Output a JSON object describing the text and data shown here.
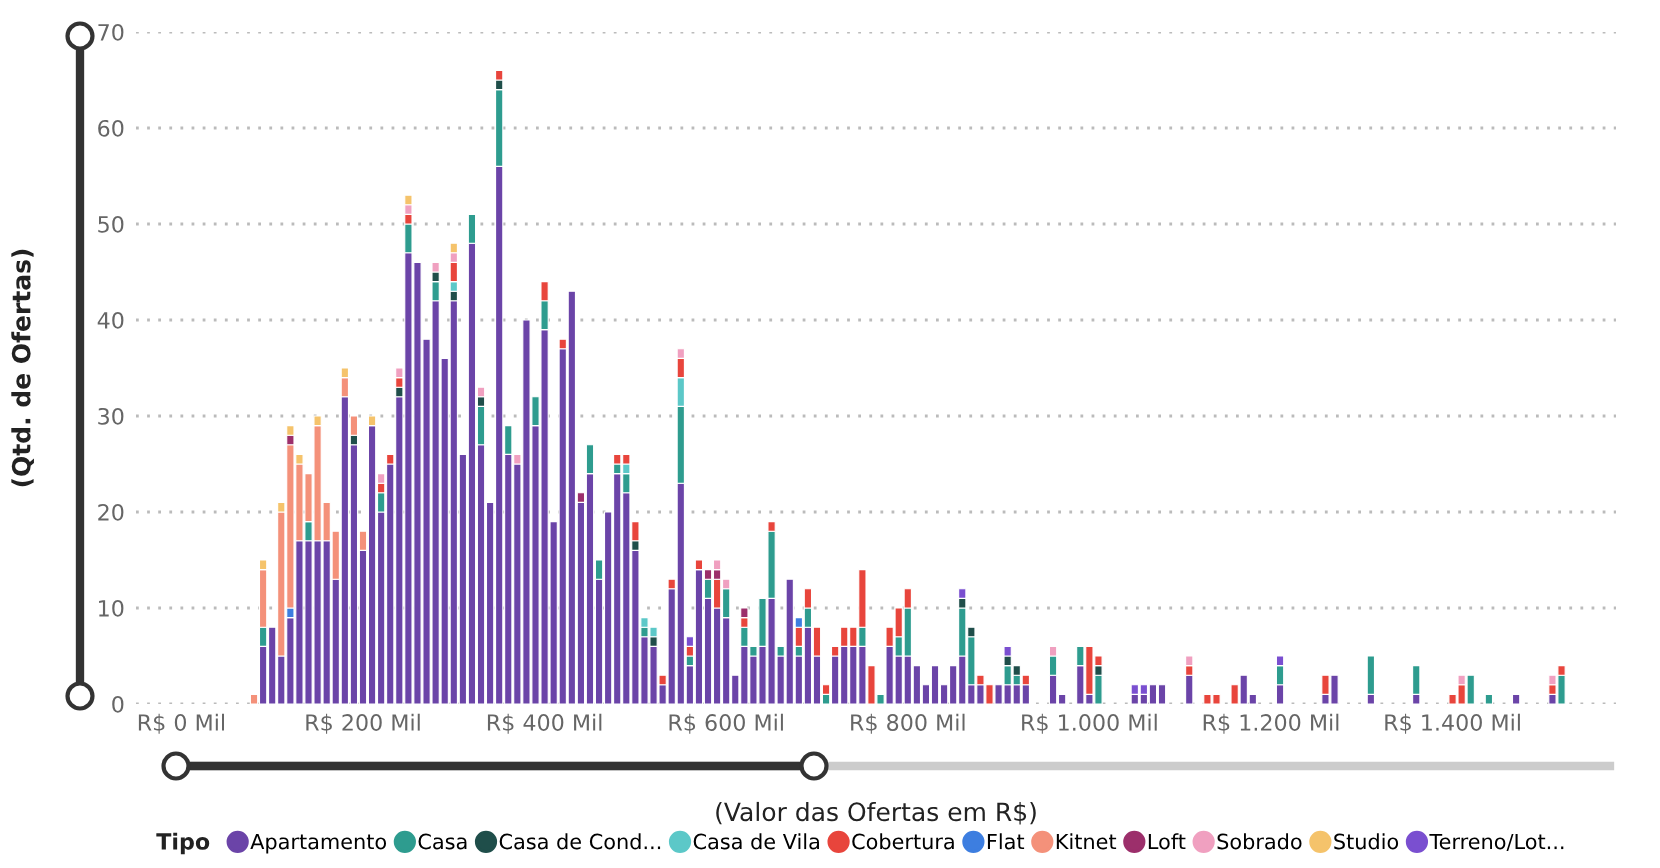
{
  "chart_data": {
    "type": "bar",
    "stacked": true,
    "xlabel": "(Valor das Ofertas em R$)",
    "ylabel": "(Qtd. de Ofertas)",
    "legend_title": "Tipo",
    "legend": "bottom",
    "grid": "y",
    "categories": [
      "R$ 0 Mil",
      null,
      null,
      null,
      null,
      null,
      null,
      null,
      null,
      null,
      null,
      null,
      null,
      null,
      null,
      null,
      null,
      null,
      null,
      null,
      "R$ 200 Mil",
      null,
      null,
      null,
      null,
      null,
      null,
      null,
      null,
      null,
      null,
      null,
      null,
      null,
      null,
      null,
      null,
      null,
      null,
      null,
      "R$ 400 Mil",
      null,
      null,
      null,
      null,
      null,
      null,
      null,
      null,
      null,
      null,
      null,
      null,
      null,
      null,
      null,
      null,
      null,
      null,
      null,
      "R$ 600 Mil",
      null,
      null,
      null,
      null,
      null,
      null,
      null,
      null,
      null,
      null,
      null,
      null,
      null,
      null,
      null,
      null,
      null,
      null,
      null,
      "R$ 800 Mil",
      null,
      null,
      null,
      null,
      null,
      null,
      null,
      null,
      null,
      null,
      null,
      null,
      null,
      null,
      null,
      null,
      null,
      null,
      null,
      "R$ 1.000 Mil",
      null,
      null,
      null,
      null,
      null,
      null,
      null,
      null,
      null,
      null,
      null,
      null,
      null,
      null,
      null,
      null,
      null,
      null,
      null,
      "R$ 1.200 Mil",
      null,
      null,
      null,
      null,
      null,
      null,
      null,
      null,
      null,
      null,
      null,
      null,
      null,
      null,
      null,
      null,
      null,
      null,
      null,
      "R$ 1.400 Mil",
      null,
      null,
      null,
      null,
      null,
      null,
      null,
      null,
      null,
      null,
      null,
      null
    ],
    "ylim": [
      0,
      70
    ],
    "yticks": [
      0,
      10,
      20,
      30,
      40,
      50,
      60,
      70
    ],
    "series": [
      {
        "name": "Apartamento",
        "color": "#6b44a8",
        "values": [
          0,
          0,
          0,
          0,
          0,
          0,
          0,
          0,
          0,
          6,
          8,
          5,
          9,
          17,
          17,
          17,
          17,
          13,
          32,
          27,
          16,
          29,
          20,
          25,
          32,
          47,
          46,
          38,
          42,
          36,
          42,
          26,
          48,
          27,
          21,
          56,
          26,
          25,
          40,
          29,
          39,
          19,
          37,
          43,
          21,
          24,
          13,
          20,
          24,
          22,
          16,
          7,
          6,
          2,
          12,
          23,
          4,
          14,
          11,
          10,
          9,
          3,
          6,
          5,
          6,
          11,
          5,
          13,
          5,
          8,
          5,
          0,
          5,
          6,
          6,
          6,
          0,
          0,
          6,
          5,
          5,
          4,
          2,
          4,
          2,
          4,
          5,
          2,
          2,
          0,
          2,
          2,
          2,
          2,
          0,
          0,
          3,
          1,
          0,
          4,
          1,
          0,
          0,
          0,
          0,
          1,
          1,
          2,
          2,
          0,
          0,
          3,
          0,
          0,
          0,
          0,
          0,
          3,
          1,
          0,
          0,
          2,
          0,
          0,
          0,
          0,
          1,
          3,
          0,
          0,
          0,
          1,
          0,
          0,
          0,
          0,
          1,
          0,
          0,
          0,
          0,
          0,
          0,
          0,
          0,
          0,
          0,
          1,
          0,
          0,
          0,
          1,
          0
        ]
      },
      {
        "name": "Casa",
        "color": "#2e9c8f",
        "values": [
          0,
          0,
          0,
          0,
          0,
          0,
          0,
          0,
          0,
          2,
          0,
          0,
          0,
          0,
          2,
          0,
          0,
          0,
          0,
          0,
          0,
          0,
          2,
          0,
          0,
          3,
          0,
          0,
          2,
          0,
          0,
          0,
          3,
          4,
          0,
          8,
          3,
          0,
          0,
          3,
          3,
          0,
          0,
          0,
          0,
          3,
          2,
          0,
          1,
          2,
          0,
          1,
          0,
          0,
          0,
          8,
          1,
          0,
          2,
          0,
          3,
          0,
          2,
          1,
          5,
          7,
          1,
          0,
          1,
          2,
          0,
          1,
          0,
          0,
          0,
          2,
          0,
          1,
          0,
          2,
          5,
          0,
          0,
          0,
          0,
          0,
          5,
          5,
          0,
          0,
          0,
          2,
          1,
          0,
          0,
          0,
          2,
          0,
          0,
          2,
          0,
          3,
          0,
          0,
          0,
          0,
          0,
          0,
          0,
          0,
          0,
          0,
          0,
          0,
          0,
          0,
          0,
          0,
          0,
          0,
          0,
          2,
          0,
          0,
          0,
          0,
          0,
          0,
          0,
          0,
          0,
          4,
          0,
          0,
          0,
          0,
          3,
          0,
          0,
          0,
          0,
          0,
          3,
          0,
          1,
          0,
          0,
          0,
          0,
          0,
          0,
          0,
          3
        ]
      },
      {
        "name": "Casa de Cond...",
        "color": "#1f4e4a",
        "values": [
          0,
          0,
          0,
          0,
          0,
          0,
          0,
          0,
          0,
          0,
          0,
          0,
          0,
          0,
          0,
          0,
          0,
          0,
          0,
          1,
          0,
          0,
          0,
          0,
          1,
          0,
          0,
          0,
          1,
          0,
          1,
          0,
          0,
          1,
          0,
          1,
          0,
          0,
          0,
          0,
          0,
          0,
          0,
          0,
          0,
          0,
          0,
          0,
          0,
          0,
          1,
          0,
          1,
          0,
          0,
          0,
          0,
          0,
          0,
          0,
          0,
          0,
          0,
          0,
          0,
          0,
          0,
          0,
          0,
          0,
          0,
          0,
          0,
          0,
          0,
          0,
          0,
          0,
          0,
          0,
          0,
          0,
          0,
          0,
          0,
          0,
          1,
          1,
          0,
          0,
          0,
          1,
          1,
          0,
          0,
          0,
          0,
          0,
          0,
          0,
          0,
          1,
          0,
          0,
          0,
          0,
          0,
          0,
          0,
          0,
          0,
          0,
          0,
          0,
          0,
          0,
          0,
          0,
          0,
          0,
          0,
          0,
          0,
          0,
          0,
          0,
          0,
          0,
          0,
          0,
          0,
          0,
          0,
          0,
          0,
          0,
          0,
          0,
          0,
          0,
          0,
          0,
          0,
          0,
          0,
          0,
          0,
          0,
          0,
          0,
          0,
          0,
          0
        ]
      },
      {
        "name": "Casa de Vila",
        "color": "#5cc8c8",
        "values": [
          0,
          0,
          0,
          0,
          0,
          0,
          0,
          0,
          0,
          0,
          0,
          0,
          0,
          0,
          0,
          0,
          0,
          0,
          0,
          0,
          0,
          0,
          0,
          0,
          0,
          0,
          0,
          0,
          0,
          0,
          1,
          0,
          0,
          0,
          0,
          0,
          0,
          0,
          0,
          0,
          0,
          0,
          0,
          0,
          0,
          0,
          0,
          0,
          0,
          1,
          0,
          1,
          1,
          0,
          0,
          3,
          0,
          0,
          0,
          0,
          0,
          0,
          0,
          0,
          0,
          0,
          0,
          0,
          0,
          0,
          0,
          0,
          0,
          0,
          0,
          0,
          0,
          0,
          0,
          0,
          0,
          0,
          0,
          0,
          0,
          0,
          0,
          0,
          0,
          0,
          0,
          0,
          0,
          0,
          0,
          0,
          0,
          0,
          0,
          0,
          0,
          0,
          0,
          0,
          0,
          0,
          0,
          0,
          0,
          0,
          0,
          0,
          0,
          0,
          0,
          0,
          0,
          0,
          0,
          0,
          0,
          0,
          0,
          0,
          0,
          0,
          0,
          0,
          0,
          0,
          0,
          0,
          0,
          0,
          0,
          0,
          0,
          0,
          0,
          0,
          0,
          0,
          0,
          0,
          0,
          0,
          0,
          0,
          0,
          0,
          0,
          0,
          0
        ]
      },
      {
        "name": "Cobertura",
        "color": "#e8453c",
        "values": [
          0,
          0,
          0,
          0,
          0,
          0,
          0,
          0,
          0,
          0,
          0,
          0,
          0,
          0,
          0,
          0,
          0,
          0,
          0,
          0,
          0,
          0,
          1,
          1,
          1,
          1,
          0,
          0,
          0,
          0,
          2,
          0,
          0,
          0,
          0,
          1,
          0,
          0,
          0,
          0,
          2,
          0,
          1,
          0,
          0,
          0,
          0,
          0,
          1,
          1,
          2,
          0,
          0,
          1,
          1,
          2,
          1,
          1,
          0,
          3,
          0,
          0,
          1,
          0,
          0,
          1,
          0,
          0,
          2,
          2,
          3,
          1,
          1,
          2,
          2,
          6,
          4,
          0,
          2,
          3,
          2,
          0,
          0,
          0,
          0,
          0,
          0,
          0,
          1,
          2,
          0,
          0,
          0,
          1,
          0,
          0,
          0,
          0,
          0,
          0,
          5,
          1,
          0,
          0,
          0,
          0,
          0,
          0,
          0,
          0,
          0,
          1,
          0,
          1,
          1,
          0,
          2,
          0,
          0,
          0,
          0,
          0,
          0,
          0,
          0,
          0,
          2,
          0,
          0,
          0,
          0,
          0,
          0,
          0,
          0,
          0,
          0,
          0,
          0,
          0,
          1,
          2,
          0,
          0,
          0,
          0,
          0,
          0,
          0,
          0,
          0,
          1,
          1
        ]
      },
      {
        "name": "Flat",
        "color": "#3d7ee0",
        "values": [
          0,
          0,
          0,
          0,
          0,
          0,
          0,
          0,
          0,
          0,
          0,
          0,
          1,
          0,
          0,
          0,
          0,
          0,
          0,
          0,
          0,
          0,
          0,
          0,
          0,
          0,
          0,
          0,
          0,
          0,
          0,
          0,
          0,
          0,
          0,
          0,
          0,
          0,
          0,
          0,
          0,
          0,
          0,
          0,
          0,
          0,
          0,
          0,
          0,
          0,
          0,
          0,
          0,
          0,
          0,
          0,
          0,
          0,
          0,
          0,
          0,
          0,
          0,
          0,
          0,
          0,
          0,
          0,
          1,
          0,
          0,
          0,
          0,
          0,
          0,
          0,
          0,
          0,
          0,
          0,
          0,
          0,
          0,
          0,
          0,
          0,
          0,
          0,
          0,
          0,
          0,
          0,
          0,
          0,
          0,
          0,
          0,
          0,
          0,
          0,
          0,
          0,
          0,
          0,
          0,
          0,
          0,
          0,
          0,
          0,
          0,
          0,
          0,
          0,
          0,
          0,
          0,
          0,
          0,
          0,
          0,
          0,
          0,
          0,
          0,
          0,
          0,
          0,
          0,
          0,
          0,
          0,
          0,
          0,
          0,
          0,
          0,
          0,
          0,
          0,
          0,
          0,
          0,
          0,
          0,
          0,
          0,
          0,
          0,
          0,
          0,
          0,
          0
        ]
      },
      {
        "name": "Kitnet",
        "color": "#f4917a",
        "values": [
          0,
          0,
          0,
          0,
          0,
          0,
          0,
          0,
          1,
          6,
          0,
          15,
          17,
          8,
          5,
          12,
          4,
          5,
          2,
          2,
          2,
          0,
          0,
          0,
          0,
          0,
          0,
          0,
          0,
          0,
          0,
          0,
          0,
          0,
          0,
          0,
          0,
          0,
          0,
          0,
          0,
          0,
          0,
          0,
          0,
          0,
          0,
          0,
          0,
          0,
          0,
          0,
          0,
          0,
          0,
          0,
          0,
          0,
          0,
          0,
          0,
          0,
          0,
          0,
          0,
          0,
          0,
          0,
          0,
          0,
          0,
          0,
          0,
          0,
          0,
          0,
          0,
          0,
          0,
          0,
          0,
          0,
          0,
          0,
          0,
          0,
          0,
          0,
          0,
          0,
          0,
          0,
          0,
          0,
          0,
          0,
          0,
          0,
          0,
          0,
          0,
          0,
          0,
          0,
          0,
          0,
          0,
          0,
          0,
          0,
          0,
          0,
          0,
          0,
          0,
          0,
          0,
          0,
          0,
          0,
          0,
          0,
          0,
          0,
          0,
          0,
          0,
          0,
          0,
          0,
          0,
          0,
          0,
          0,
          0,
          0,
          0,
          0,
          0,
          0,
          0,
          0,
          0,
          0,
          0,
          0,
          0,
          0,
          0,
          0,
          0,
          0,
          0
        ]
      },
      {
        "name": "Loft",
        "color": "#9c2f6b",
        "values": [
          0,
          0,
          0,
          0,
          0,
          0,
          0,
          0,
          0,
          0,
          0,
          0,
          1,
          0,
          0,
          0,
          0,
          0,
          0,
          0,
          0,
          0,
          0,
          0,
          0,
          0,
          0,
          0,
          0,
          0,
          0,
          0,
          0,
          0,
          0,
          0,
          0,
          0,
          0,
          0,
          0,
          0,
          0,
          0,
          1,
          0,
          0,
          0,
          0,
          0,
          0,
          0,
          0,
          0,
          0,
          0,
          0,
          0,
          1,
          1,
          0,
          0,
          1,
          0,
          0,
          0,
          0,
          0,
          0,
          0,
          0,
          0,
          0,
          0,
          0,
          0,
          0,
          0,
          0,
          0,
          0,
          0,
          0,
          0,
          0,
          0,
          0,
          0,
          0,
          0,
          0,
          0,
          0,
          0,
          0,
          0,
          0,
          0,
          0,
          0,
          0,
          0,
          0,
          0,
          0,
          0,
          0,
          0,
          0,
          0,
          0,
          0,
          0,
          0,
          0,
          0,
          0,
          0,
          0,
          0,
          0,
          0,
          0,
          0,
          0,
          0,
          0,
          0,
          0,
          0,
          0,
          0,
          0,
          0,
          0,
          0,
          0,
          0,
          0,
          0,
          0,
          0,
          0,
          0,
          0,
          0,
          0,
          0,
          0,
          0,
          0,
          0,
          0
        ]
      },
      {
        "name": "Sobrado",
        "color": "#f0a0c0",
        "values": [
          0,
          0,
          0,
          0,
          0,
          0,
          0,
          0,
          0,
          0,
          0,
          0,
          0,
          0,
          0,
          0,
          0,
          0,
          0,
          0,
          0,
          0,
          1,
          0,
          1,
          1,
          0,
          0,
          1,
          0,
          1,
          0,
          0,
          1,
          0,
          0,
          0,
          1,
          0,
          0,
          0,
          0,
          0,
          0,
          0,
          0,
          0,
          0,
          0,
          0,
          0,
          0,
          0,
          0,
          0,
          1,
          0,
          0,
          0,
          1,
          1,
          0,
          0,
          0,
          0,
          0,
          0,
          0,
          0,
          0,
          0,
          0,
          0,
          0,
          0,
          0,
          0,
          0,
          0,
          0,
          0,
          0,
          0,
          0,
          0,
          0,
          0,
          0,
          0,
          0,
          0,
          0,
          0,
          0,
          0,
          0,
          1,
          0,
          0,
          0,
          0,
          0,
          0,
          0,
          0,
          0,
          0,
          0,
          0,
          0,
          0,
          1,
          0,
          0,
          0,
          0,
          0,
          0,
          0,
          0,
          0,
          0,
          0,
          0,
          0,
          0,
          0,
          0,
          0,
          0,
          0,
          0,
          0,
          0,
          0,
          0,
          0,
          0,
          0,
          0,
          0,
          1,
          0,
          0,
          0,
          0,
          0,
          0,
          0,
          0,
          0,
          1,
          0
        ]
      },
      {
        "name": "Studio",
        "color": "#f5c36b",
        "values": [
          0,
          0,
          0,
          0,
          0,
          0,
          0,
          0,
          0,
          1,
          0,
          1,
          1,
          1,
          0,
          1,
          0,
          0,
          1,
          0,
          0,
          1,
          0,
          0,
          0,
          1,
          0,
          0,
          0,
          0,
          1,
          0,
          0,
          0,
          0,
          0,
          0,
          0,
          0,
          0,
          0,
          0,
          0,
          0,
          0,
          0,
          0,
          0,
          0,
          0,
          0,
          0,
          0,
          0,
          0,
          0,
          0,
          0,
          0,
          0,
          0,
          0,
          0,
          0,
          0,
          0,
          0,
          0,
          0,
          0,
          0,
          0,
          0,
          0,
          0,
          0,
          0,
          0,
          0,
          0,
          0,
          0,
          0,
          0,
          0,
          0,
          0,
          0,
          0,
          0,
          0,
          0,
          0,
          0,
          0,
          0,
          0,
          0,
          0,
          0,
          0,
          0,
          0,
          0,
          0,
          0,
          0,
          0,
          0,
          0,
          0,
          0,
          0,
          0,
          0,
          0,
          0,
          0,
          0,
          0,
          0,
          0,
          0,
          0,
          0,
          0,
          0,
          0,
          0,
          0,
          0,
          0,
          0,
          0,
          0,
          0,
          0,
          0,
          0,
          0,
          0,
          0,
          0,
          0,
          0,
          0,
          0,
          0,
          0,
          0,
          0,
          0,
          0
        ]
      },
      {
        "name": "Terreno/Lot...",
        "color": "#7a4fd0",
        "values": [
          0,
          0,
          0,
          0,
          0,
          0,
          0,
          0,
          0,
          0,
          0,
          0,
          0,
          0,
          0,
          0,
          0,
          0,
          0,
          0,
          0,
          0,
          0,
          0,
          0,
          0,
          0,
          0,
          0,
          0,
          0,
          0,
          0,
          0,
          0,
          0,
          0,
          0,
          0,
          0,
          0,
          0,
          0,
          0,
          0,
          0,
          0,
          0,
          0,
          0,
          0,
          0,
          0,
          0,
          0,
          0,
          1,
          0,
          0,
          0,
          0,
          0,
          0,
          0,
          0,
          0,
          0,
          0,
          0,
          0,
          0,
          0,
          0,
          0,
          0,
          0,
          0,
          0,
          0,
          0,
          0,
          0,
          0,
          0,
          0,
          0,
          1,
          0,
          0,
          0,
          0,
          1,
          0,
          0,
          0,
          0,
          0,
          0,
          0,
          0,
          0,
          0,
          0,
          0,
          0,
          1,
          1,
          0,
          0,
          0,
          0,
          0,
          0,
          0,
          0,
          0,
          0,
          0,
          0,
          0,
          0,
          1,
          0,
          0,
          0,
          0,
          0,
          0,
          0,
          0,
          0,
          0,
          0,
          0,
          0,
          0,
          0,
          0,
          0,
          0,
          0,
          0,
          0,
          0,
          0,
          0,
          0,
          0,
          0,
          0,
          0,
          0,
          0
        ]
      }
    ]
  }
}
